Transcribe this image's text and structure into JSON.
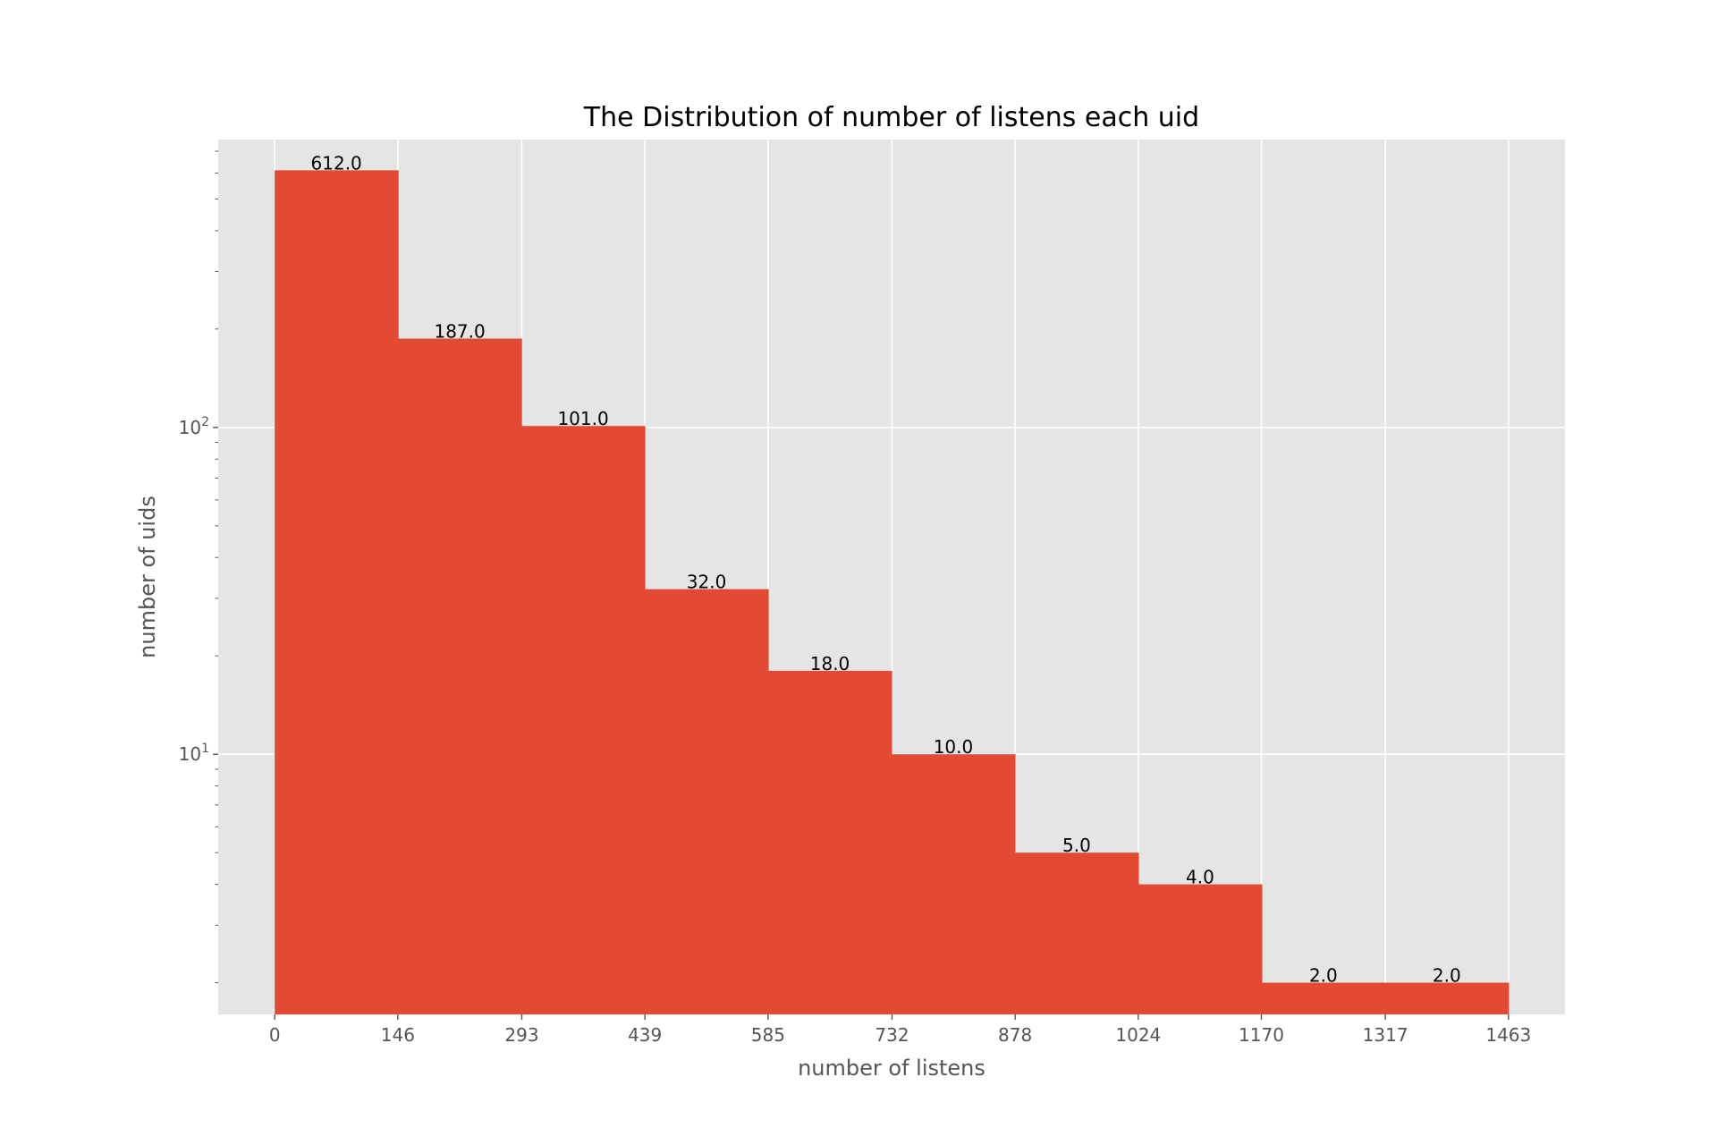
{
  "chart_data": {
    "type": "bar",
    "title": "The Distribution of number of listens each uid",
    "xlabel": "number of listens",
    "ylabel": "number of uids",
    "y_scale": "log",
    "ylim": [
      1.6,
      760
    ],
    "xlim": [
      -67,
      1530
    ],
    "x_ticks": [
      "0",
      "146",
      "293",
      "439",
      "585",
      "732",
      "878",
      "1024",
      "1170",
      "1317",
      "1463"
    ],
    "y_ticks": [
      {
        "base": "10",
        "exp": "1",
        "value": 10
      },
      {
        "base": "10",
        "exp": "2",
        "value": 100
      }
    ],
    "bin_edges": [
      0,
      146.3,
      292.6,
      438.9,
      585.2,
      731.5,
      877.8,
      1024.1,
      1170.4,
      1316.7,
      1463
    ],
    "values": [
      612,
      187,
      101,
      32,
      18,
      10,
      5,
      4,
      2,
      2
    ],
    "value_labels": [
      "612.0",
      "187.0",
      "101.0",
      "32.0",
      "18.0",
      "10.0",
      "5.0",
      "4.0",
      "2.0",
      "2.0"
    ],
    "grid": true,
    "bar_color": "#E24A33",
    "background_color": "#E5E5E5",
    "grid_color": "#FFFFFF"
  }
}
